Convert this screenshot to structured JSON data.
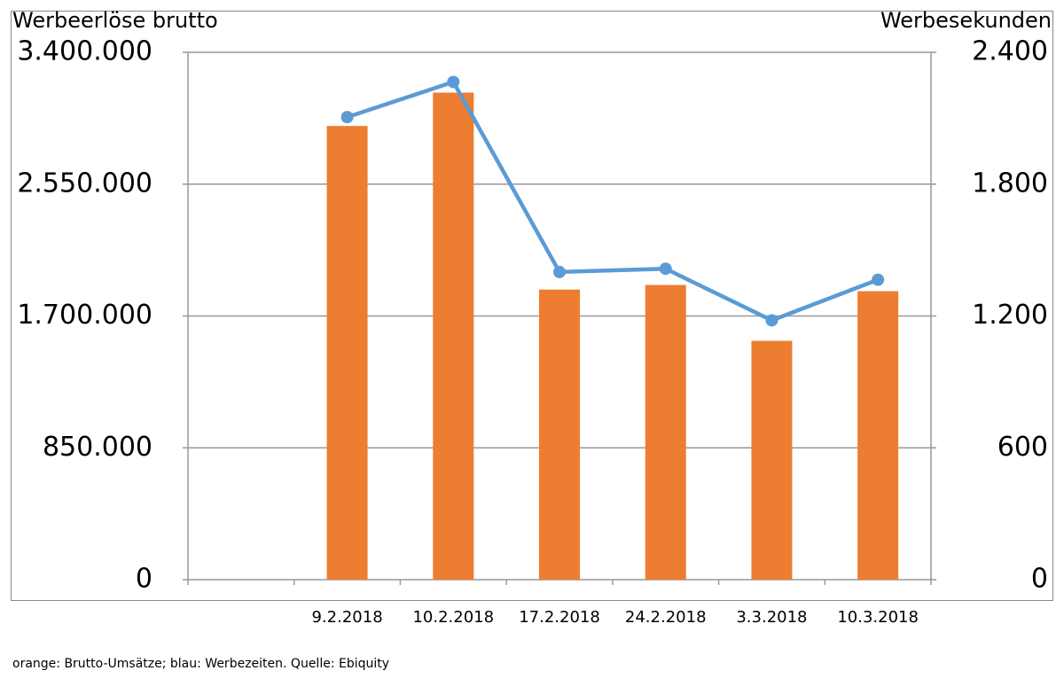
{
  "chart_data": {
    "type": "bar_line",
    "y_label": "Werbeerlöse brutto",
    "y2_label": "Werbesekunden",
    "note": "orange: Brutto-Umsätze; blau: Werbezeiten. Quelle: Ebiquity",
    "categories": [
      null,
      "9.2.2018",
      "10.2.2018",
      "17.2.2018",
      "24.2.2018",
      "3.3.2018",
      "10.3.2018"
    ],
    "series": [
      {
        "type": "bar",
        "color": "#ed7d31",
        "values": [
          null,
          2925000,
          3140000,
          1870000,
          1900000,
          1540000,
          1860000
        ]
      },
      {
        "type": "line",
        "axis": "y2",
        "color": "#5b9bd5",
        "values": [
          null,
          2105,
          2265,
          1400,
          1415,
          1180,
          1365
        ]
      }
    ],
    "ylim": [
      0,
      3400000
    ],
    "yticks": [
      0,
      {
        "value": 850000,
        "label": "850.000"
      },
      {
        "value": 1700000,
        "label": "1.700.000"
      },
      {
        "value": 2550000,
        "label": "2.550.000"
      },
      {
        "value": 3400000,
        "label": "3.400.000"
      }
    ],
    "y2lim": [
      0,
      2400
    ],
    "y2ticks": [
      0,
      600,
      {
        "value": 1200,
        "label": "1.200"
      },
      {
        "value": 1800,
        "label": "1.800"
      },
      {
        "value": 2400,
        "label": "2.400"
      }
    ],
    "grid": true
  }
}
